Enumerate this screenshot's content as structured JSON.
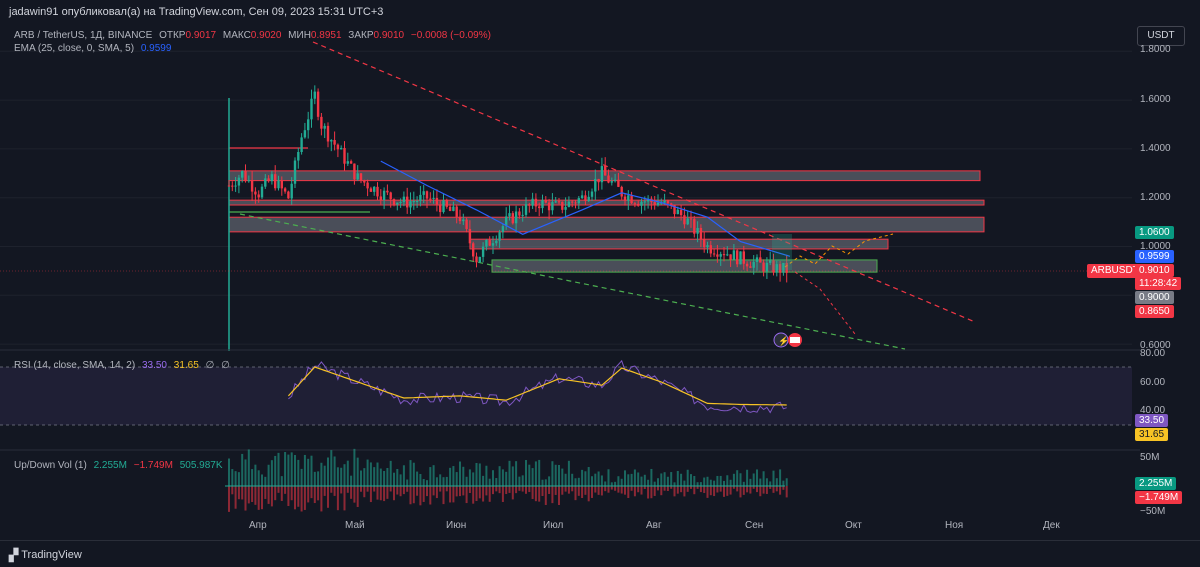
{
  "header": {
    "published_by": "jadawin91 опубликовал(а) на TradingView.com, Сен 09, 2023 15:31 UTC+3"
  },
  "main_legend": {
    "symbol": "ARB / TetherUS, 1Д, BINANCE",
    "open_label": "ОТКР",
    "open": "0.9017",
    "high_label": "МАКС",
    "high": "0.9020",
    "low_label": "МИН",
    "low": "0.8951",
    "close_label": "ЗАКР",
    "close": "0.9010",
    "change": "−0.0008 (−0.09%)"
  },
  "ema_legend": {
    "label": "EMA (25, close, 0, SMA, 5)",
    "value": "0.9599"
  },
  "rsi_legend": {
    "label": "RSI (14, close, SMA, 14, 2)",
    "rsi": "33.50",
    "ma": "31.65",
    "extra1": "∅",
    "extra2": "∅"
  },
  "vol_legend": {
    "label": "Up/Down Vol (1)",
    "up": "2.255M",
    "down": "−1.749M",
    "delta": "505.987K"
  },
  "currency_button": "USDT",
  "price_axis": {
    "labels": [
      "1.8000",
      "1.6000",
      "1.4000",
      "1.2000",
      "1.0000",
      "0.6000"
    ],
    "tag_high": "1.0600",
    "tag_ema": "0.9599",
    "tag_symbol": "ARBUSDT",
    "tag_price": "0.9010",
    "tag_countdown": "11:28:42",
    "tag_level_a": "0.9000",
    "tag_level_b": "0.8650"
  },
  "rsi_axis": {
    "labels": [
      "80.00",
      "60.00",
      "40.00"
    ],
    "tag_rsi": "33.50",
    "tag_ma": "31.65"
  },
  "vol_axis": {
    "labels": [
      "50M",
      "−50M"
    ],
    "tag_up": "2.255M",
    "tag_down": "−1.749M"
  },
  "time_axis": [
    "Апр",
    "Май",
    "Июн",
    "Июл",
    "Авг",
    "Сен",
    "Окт",
    "Ноя",
    "Дек"
  ],
  "footer": {
    "brand": "TradingView"
  },
  "colors": {
    "background": "#131722",
    "up": "#22ab94",
    "down": "#f23645",
    "ema": "#2962ff",
    "rsi": "#7e57c2",
    "rsi_ma": "#f7c325",
    "zone_fill": "#787b86",
    "trend_red": "#f23645",
    "trend_green": "#4caf50"
  },
  "chart_data": {
    "type": "candlestick",
    "series": [
      {
        "name": "ARBUSDT",
        "kind": "candlestick",
        "x": [
          "Мар 23",
          "Мар 27",
          "Апр 1",
          "Апр 5",
          "Апр 10",
          "Апр 15",
          "Апр 18",
          "Апр 20",
          "Апр 25",
          "Май 1",
          "Май 8",
          "Май 15",
          "Май 22",
          "Июн 1",
          "Июн 6",
          "Июн 10",
          "Июн 15",
          "Июн 20",
          "Июн 25",
          "Июл 1",
          "Июл 8",
          "Июл 14",
          "Июл 20",
          "Июл 25",
          "Авг 1",
          "Авг 8",
          "Авг 15",
          "Авг 20",
          "Авг 25",
          "Сен 1",
          "Сен 5",
          "Сен 9"
        ],
        "close": [
          1.25,
          1.3,
          1.22,
          1.28,
          1.2,
          1.45,
          1.62,
          1.5,
          1.4,
          1.28,
          1.22,
          1.18,
          1.2,
          1.12,
          0.95,
          1.02,
          1.1,
          1.15,
          1.18,
          1.16,
          1.2,
          1.3,
          1.22,
          1.19,
          1.18,
          1.12,
          1.0,
          0.98,
          0.95,
          0.92,
          0.91,
          0.901
        ]
      },
      {
        "name": "EMA",
        "kind": "line",
        "x": [
          "Май 8",
          "Май 22",
          "Июн 6",
          "Июн 20",
          "Июл 8",
          "Июл 20",
          "Авг 1",
          "Авг 15",
          "Авг 25",
          "Сен 9"
        ],
        "values": [
          1.35,
          1.25,
          1.15,
          1.05,
          1.15,
          1.22,
          1.18,
          1.12,
          1.02,
          0.96
        ]
      },
      {
        "name": "RSI",
        "kind": "line",
        "x": [
          "Апр 10",
          "Апр 18",
          "Май 1",
          "Май 15",
          "Июн 1",
          "Июн 15",
          "Июл 1",
          "Июл 15",
          "Июл 20",
          "Авг 1",
          "Авг 15",
          "Авг 25",
          "Сен 9"
        ],
        "values": [
          42,
          69,
          55,
          40,
          42,
          38,
          58,
          52,
          68,
          55,
          35,
          34,
          33.5
        ]
      }
    ],
    "ylim": [
      0.6,
      1.85
    ],
    "rsi_ylim": [
      20,
      80
    ],
    "zones": [
      [
        1.27,
        1.31
      ],
      [
        1.17,
        1.19
      ],
      [
        1.06,
        1.12
      ],
      [
        0.99,
        1.03
      ],
      [
        0.895,
        0.945
      ]
    ]
  }
}
